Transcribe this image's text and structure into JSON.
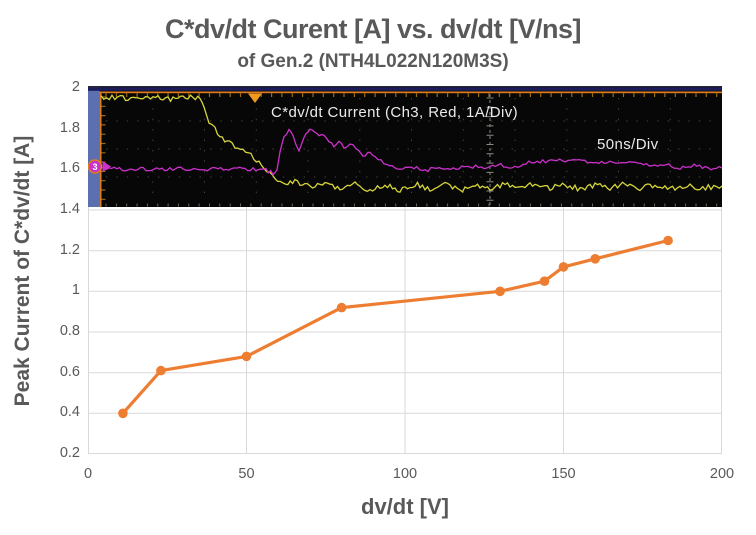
{
  "title": "C*dv/dt Curent [A] vs. dv/dt [V/ns]",
  "subtitle": "of Gen.2 (NTH4L022N120M3S)",
  "chart_data": {
    "type": "line",
    "title": "C*dv/dt Curent [A] vs. dv/dt [V/ns] of Gen.2 (NTH4L022N120M3S)",
    "xlabel": "dv/dt [V]",
    "ylabel": "Peak Current of C*dv/dt [A]",
    "xlim": [
      0,
      200
    ],
    "ylim": [
      0.2,
      2
    ],
    "xticks": [
      "0",
      "50",
      "100",
      "150",
      "200"
    ],
    "yticks": [
      "2",
      "1.8",
      "1.6",
      "1.4",
      "1.2",
      "1",
      "0.8",
      "0.6",
      "0.4",
      "0.2"
    ],
    "grid": true,
    "legend": "none",
    "series": [
      {
        "name": "Peak current of C*dv/dt",
        "color": "#ED7D31",
        "marker": "circle",
        "points": [
          [
            11,
            0.4
          ],
          [
            23,
            0.61
          ],
          [
            50,
            0.68
          ],
          [
            80,
            0.92
          ],
          [
            130,
            1.0
          ],
          [
            144,
            1.05
          ],
          [
            150,
            1.12
          ],
          [
            160,
            1.16
          ],
          [
            183,
            1.25
          ]
        ]
      }
    ]
  },
  "scope_inset": {
    "trace_label": "C*dv/dt Current (Ch3, Red, 1A/Div)",
    "timebase_label": "50ns/Div",
    "channel_badge": "3",
    "colors": {
      "background": "#070707",
      "frame_blue": "#5c6fae",
      "top_navy": "#1b1c5a",
      "graticule_orange": "#dd7d1c",
      "tick_orange": "#a06a14",
      "dot_grid": "#45453a",
      "center_line": "#8a8a80",
      "yellow_trace": "#d6d63a",
      "magenta_trace": "#cb30cb",
      "trigger_marker": "#f09a20",
      "label_text": "#ebebeb"
    },
    "yellow_trace_waypoints": [
      [
        13,
        11
      ],
      [
        35,
        12
      ],
      [
        60,
        11
      ],
      [
        85,
        13
      ],
      [
        105,
        11
      ],
      [
        112,
        12
      ],
      [
        116,
        22
      ],
      [
        121,
        36
      ],
      [
        127,
        43
      ],
      [
        132,
        50
      ],
      [
        139,
        55
      ],
      [
        147,
        60
      ],
      [
        155,
        65
      ],
      [
        163,
        70
      ],
      [
        171,
        77
      ],
      [
        179,
        84
      ],
      [
        187,
        92
      ],
      [
        195,
        97
      ],
      [
        207,
        95
      ],
      [
        222,
        101
      ],
      [
        237,
        97
      ],
      [
        252,
        103
      ],
      [
        267,
        98
      ],
      [
        282,
        105
      ],
      [
        297,
        99
      ],
      [
        312,
        104
      ],
      [
        327,
        98
      ],
      [
        342,
        103
      ],
      [
        357,
        99
      ],
      [
        372,
        104
      ],
      [
        387,
        100
      ],
      [
        402,
        103
      ],
      [
        417,
        98
      ],
      [
        432,
        102
      ],
      [
        447,
        98
      ],
      [
        462,
        102
      ],
      [
        477,
        99
      ],
      [
        492,
        103
      ],
      [
        507,
        99
      ],
      [
        522,
        102
      ],
      [
        537,
        98
      ],
      [
        552,
        102
      ],
      [
        567,
        99
      ],
      [
        582,
        103
      ],
      [
        597,
        100
      ],
      [
        612,
        102
      ],
      [
        634,
        100
      ]
    ],
    "magenta_trace_waypoints": [
      [
        13,
        83
      ],
      [
        50,
        83
      ],
      [
        90,
        83
      ],
      [
        130,
        83
      ],
      [
        165,
        83
      ],
      [
        178,
        84
      ],
      [
        185,
        87
      ],
      [
        189,
        84
      ],
      [
        192,
        65
      ],
      [
        196,
        52
      ],
      [
        201,
        45
      ],
      [
        205,
        49
      ],
      [
        208,
        58
      ],
      [
        211,
        65
      ],
      [
        214,
        58
      ],
      [
        218,
        47
      ],
      [
        222,
        42
      ],
      [
        227,
        45
      ],
      [
        231,
        51
      ],
      [
        236,
        49
      ],
      [
        241,
        54
      ],
      [
        246,
        60
      ],
      [
        251,
        57
      ],
      [
        256,
        61
      ],
      [
        262,
        57
      ],
      [
        268,
        63
      ],
      [
        275,
        69
      ],
      [
        282,
        67
      ],
      [
        290,
        74
      ],
      [
        299,
        79
      ],
      [
        312,
        83
      ],
      [
        326,
        81
      ],
      [
        340,
        84
      ],
      [
        354,
        81
      ],
      [
        368,
        83
      ],
      [
        382,
        80
      ],
      [
        396,
        82
      ],
      [
        410,
        79
      ],
      [
        424,
        81
      ],
      [
        438,
        77
      ],
      [
        452,
        76
      ],
      [
        466,
        74
      ],
      [
        480,
        76
      ],
      [
        494,
        74
      ],
      [
        508,
        77
      ],
      [
        522,
        75
      ],
      [
        536,
        78
      ],
      [
        550,
        76
      ],
      [
        564,
        80
      ],
      [
        578,
        78
      ],
      [
        592,
        82
      ],
      [
        606,
        80
      ],
      [
        620,
        82
      ],
      [
        634,
        82
      ]
    ]
  },
  "colors": {
    "title_text": "#595959",
    "axis_text": "#595959",
    "grid": "#d9d9d9",
    "series_orange": "#ED7D31",
    "background": "#ffffff"
  }
}
